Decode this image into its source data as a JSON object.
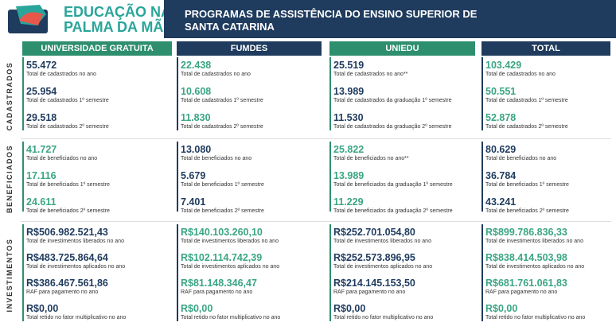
{
  "header": {
    "logo": [
      "EDUCAÇÃO NA",
      "PALMA DA MÃO"
    ],
    "title": [
      "PROGRAMAS DE ASSISTÊNCIA DO ENSINO SUPERIOR DE",
      "SANTA CATARINA"
    ]
  },
  "columns": [
    "UNIVERSIDADE GRATUITA",
    "FUMDES",
    "UNIEDU",
    "TOTAL"
  ],
  "sections": [
    {
      "label": "CADASTRADOS",
      "cells": [
        [
          {
            "value": "55.472",
            "label": "Total de cadastrados no ano"
          },
          {
            "value": "25.954",
            "label": "Total de cadastrados 1º semestre"
          },
          {
            "value": "29.518",
            "label": "Total de cadastrados 2º semestre"
          }
        ],
        [
          {
            "value": "22.438",
            "label": "Total de cadastrados no ano"
          },
          {
            "value": "10.608",
            "label": "Total de cadastrados 1º semestre"
          },
          {
            "value": "11.830",
            "label": "Total de cadastrados 2º semestre"
          }
        ],
        [
          {
            "value": "25.519",
            "label": "Total de cadastrados no ano**"
          },
          {
            "value": "13.989",
            "label": "Total de cadastrados da graduação 1º semestre"
          },
          {
            "value": "11.530",
            "label": "Total de cadastrados da graduação 2º semestre"
          }
        ],
        [
          {
            "value": "103.429",
            "label": "Total de cadastrados no ano"
          },
          {
            "value": "50.551",
            "label": "Total de cadastrados 1º semestre"
          },
          {
            "value": "52.878",
            "label": "Total de cadastrados 2º semestre"
          }
        ]
      ]
    },
    {
      "label": "BENEFICIADOS",
      "cells": [
        [
          {
            "value": "41.727",
            "label": "Total de beneficiados no ano"
          },
          {
            "value": "17.116",
            "label": "Total de beneficiados 1º semestre"
          },
          {
            "value": "24.611",
            "label": "Total de beneficiados 2º semestre"
          }
        ],
        [
          {
            "value": "13.080",
            "label": "Total de beneficiados no ano"
          },
          {
            "value": "5.679",
            "label": "Total de beneficiados 1º semestre"
          },
          {
            "value": "7.401",
            "label": "Total de beneficiados 2º semestre"
          }
        ],
        [
          {
            "value": "25.822",
            "label": "Total de beneficiados no ano**"
          },
          {
            "value": "13.989",
            "label": "Total de beneficiados da graduação 1º semestre"
          },
          {
            "value": "11.229",
            "label": "Total de beneficiados da graduação 2º semestre"
          }
        ],
        [
          {
            "value": "80.629",
            "label": "Total de beneficiados no ano"
          },
          {
            "value": "36.784",
            "label": "Total de beneficiados 1º semestre"
          },
          {
            "value": "43.241",
            "label": "Total de beneficiados 2º semestre"
          }
        ]
      ]
    },
    {
      "label": "INVESTIMENTOS",
      "cells": [
        [
          {
            "value": "R$506.982.521,43",
            "label": "Total de investimentos liberados no ano"
          },
          {
            "value": "R$483.725.864,64",
            "label": "Total de investimentos aplicados no ano"
          },
          {
            "value": "R$386.467.561,86",
            "label": "RAF para pagamento no ano"
          },
          {
            "value": "R$0,00",
            "label": "Total retido no fator multiplicativo no ano"
          }
        ],
        [
          {
            "value": "R$140.103.260,10",
            "label": "Total de investimentos liberados no ano"
          },
          {
            "value": "R$102.114.742,39",
            "label": "Total de investimentos aplicados no ano"
          },
          {
            "value": "R$81.148.346,47",
            "label": "RAF para pagamento no ano"
          },
          {
            "value": "R$0,00",
            "label": "Total retido no fator multiplicativo no ano"
          }
        ],
        [
          {
            "value": "R$252.701.054,80",
            "label": "Total de investimentos liberados no ano"
          },
          {
            "value": "R$252.573.896,95",
            "label": "Total de investimentos aplicados no ano"
          },
          {
            "value": "R$214.145.153,50",
            "label": "RAF para pagamento no ano"
          },
          {
            "value": "R$0,00",
            "label": "Total retido no fator multiplicativo no ano"
          }
        ],
        [
          {
            "value": "R$899.786.836,33",
            "label": "Total de investimentos liberados no ano"
          },
          {
            "value": "R$838.414.503,98",
            "label": "Total de investimentos aplicados no ano"
          },
          {
            "value": "R$681.761.061,83",
            "label": "RAF para pagamento no ano"
          },
          {
            "value": "R$0,00",
            "label": "Total retido no fator multiplicativo no ano"
          }
        ]
      ]
    }
  ]
}
